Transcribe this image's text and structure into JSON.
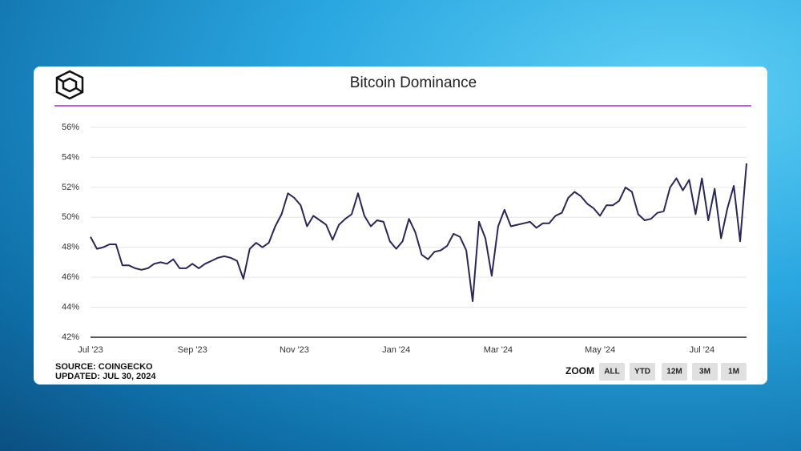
{
  "chart_data": {
    "type": "line",
    "title": "Bitcoin Dominance",
    "color": "#2b2657",
    "grid": true,
    "ylim": [
      42,
      56
    ],
    "yticks": [
      {
        "value": 42,
        "label": "42%"
      },
      {
        "value": 44,
        "label": "44%"
      },
      {
        "value": 46,
        "label": "46%"
      },
      {
        "value": 48,
        "label": "48%"
      },
      {
        "value": 50,
        "label": "50%"
      },
      {
        "value": 52,
        "label": "52%"
      },
      {
        "value": 54,
        "label": "54%"
      },
      {
        "value": 56,
        "label": "56%"
      }
    ],
    "categories": [
      "Jul '23",
      null,
      null,
      null,
      null,
      null,
      null,
      null,
      null,
      null,
      null,
      null,
      null,
      null,
      null,
      null,
      "Sep '23",
      null,
      null,
      null,
      null,
      null,
      null,
      null,
      null,
      null,
      null,
      null,
      null,
      null,
      null,
      null,
      "Nov '23",
      null,
      null,
      null,
      null,
      null,
      null,
      null,
      null,
      null,
      null,
      null,
      null,
      null,
      null,
      null,
      "Jan '24",
      null,
      null,
      null,
      null,
      null,
      null,
      null,
      null,
      null,
      null,
      null,
      null,
      null,
      null,
      null,
      "Mar '24",
      null,
      null,
      null,
      null,
      null,
      null,
      null,
      null,
      null,
      null,
      null,
      null,
      null,
      null,
      null,
      "May '24",
      null,
      null,
      null,
      null,
      null,
      null,
      null,
      null,
      null,
      null,
      null,
      null,
      null,
      null,
      null,
      "Jul '24",
      null,
      null,
      null,
      null,
      null,
      null,
      null
    ],
    "values": [
      48.7,
      47.9,
      48.0,
      48.2,
      48.2,
      46.8,
      46.8,
      46.6,
      46.5,
      46.6,
      46.9,
      47.0,
      46.9,
      47.2,
      46.6,
      46.6,
      46.9,
      46.6,
      46.9,
      47.1,
      47.3,
      47.4,
      47.3,
      47.1,
      45.9,
      47.9,
      48.3,
      48.0,
      48.3,
      49.4,
      50.2,
      51.6,
      51.3,
      50.8,
      49.4,
      50.1,
      49.8,
      49.5,
      48.5,
      49.5,
      49.9,
      50.2,
      51.6,
      50.1,
      49.4,
      49.8,
      49.7,
      48.4,
      47.9,
      48.4,
      49.9,
      49.0,
      47.5,
      47.2,
      47.7,
      47.8,
      48.1,
      48.9,
      48.7,
      47.8,
      44.4,
      49.7,
      48.6,
      46.1,
      49.4,
      50.5,
      49.4,
      49.5,
      49.6,
      49.7,
      49.3,
      49.6,
      49.6,
      50.1,
      50.3,
      51.3,
      51.7,
      51.4,
      50.9,
      50.6,
      50.1,
      50.8,
      50.8,
      51.1,
      52.0,
      51.7,
      50.2,
      49.8,
      49.9,
      50.3,
      50.4,
      52.0,
      52.6,
      51.8,
      52.5,
      50.2,
      52.6,
      49.8,
      51.9,
      48.6,
      50.6,
      52.1,
      48.4,
      53.6
    ]
  },
  "source": "SOURCE: COINGECKO",
  "updated": "UPDATED: JUL 30, 2024",
  "zoom": {
    "label": "ZOOM",
    "buttons": [
      "ALL",
      "YTD",
      "12M",
      "3M",
      "1M"
    ]
  }
}
